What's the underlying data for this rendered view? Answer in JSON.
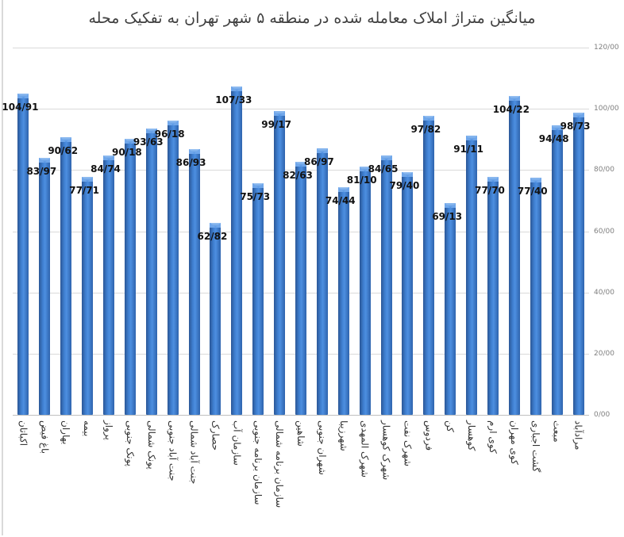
{
  "chart_data": {
    "type": "bar",
    "title": "میانگین متراژ املاک معامله شده در منطقه ۵ شهر تهران به تفکیک محله",
    "xlabel": "",
    "ylabel": "",
    "ylim": [
      0,
      120
    ],
    "y_ticks": [
      "0/00",
      "20/00",
      "40/00",
      "60/00",
      "80/00",
      "100/00",
      "120/00"
    ],
    "y_axis_position": "right",
    "grid": true,
    "legend": null,
    "bar_color": "#3a75c4",
    "categories": [
      "اکباتان",
      "باغ فیض",
      "بهاران",
      "بیمه",
      "پرواز",
      "پونک جنوبی",
      "پونک شمالی",
      "جنت آباد جنوبی",
      "جنت آباد شمالی",
      "حصارک",
      "سازمان آب",
      "سازمان برنامه جنوبی",
      "سازمان برنامه شمالی",
      "شاهین",
      "شهران جنوبی",
      "شهرزیبا",
      "شهرک المهدی",
      "شهرک کوهسار",
      "شهرک نفت",
      "فردوس",
      "کن",
      "کوهسار",
      "کوی ارم",
      "کوی مهران",
      "گشت اجباری",
      "مبعث",
      "مرادآباد"
    ],
    "values": [
      104.91,
      83.97,
      90.62,
      77.71,
      84.74,
      90.18,
      93.63,
      96.18,
      86.93,
      62.82,
      107.33,
      75.73,
      99.17,
      82.63,
      86.97,
      74.44,
      81.1,
      84.65,
      79.4,
      97.82,
      69.13,
      91.11,
      77.7,
      104.22,
      77.4,
      94.48,
      98.73
    ],
    "value_labels": [
      "104/91",
      "83/97",
      "90/62",
      "77/71",
      "84/74",
      "90/18",
      "93/63",
      "96/18",
      "86/93",
      "62/82",
      "107/33",
      "75/73",
      "99/17",
      "82/63",
      "86/97",
      "74/44",
      "81/10",
      "84/65",
      "79/40",
      "97/82",
      "69/13",
      "91/11",
      "77/70",
      "104/22",
      "77/40",
      "94/48",
      "98/73"
    ]
  }
}
